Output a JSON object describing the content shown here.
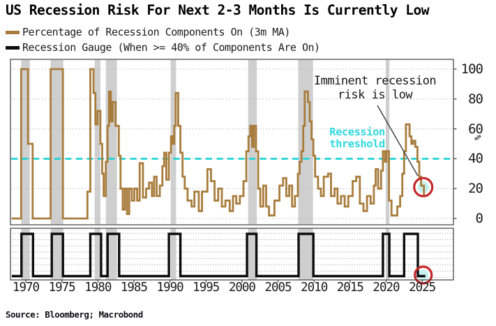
{
  "header": {
    "title": "US Recession Risk For Next 2-3 Months Is Currently Low"
  },
  "legend": {
    "items": [
      {
        "label": "Percentage of Recession Components On (3m MA)",
        "color": "#a87c3c"
      },
      {
        "label": "Recession Gauge (When >= 40% of Components Are On)",
        "color": "#0d0d0d"
      }
    ]
  },
  "annotations": {
    "imminent": {
      "line1": "Imminent recession",
      "line2": "risk is low"
    },
    "threshold_label": {
      "line1": "Recession",
      "line2": "threshold"
    }
  },
  "source": "Source: Bloomberg; Macrobond",
  "y_unit": "%",
  "colors": {
    "components_line": "#a87c3c",
    "gauge_line": "#0d0d0d",
    "threshold": "#17d3d3",
    "threshold_text": "#2fd9e0",
    "recession_bar": "#c8c8c8",
    "highlight_circle": "#c3272b",
    "highlight_inner": "#bdeeee",
    "grid": "#bdbdbd",
    "frame": "#3c3c3c",
    "arrow": "#3a3a3a"
  },
  "chart_data": {
    "type": "line",
    "title": "US Recession Risk For Next 2-3 Months Is Currently Low",
    "grid": "dotted horizontal",
    "legend_position": "top-left",
    "x_ticks": [
      1970,
      1975,
      1980,
      1985,
      1990,
      1995,
      2000,
      2005,
      2010,
      2015,
      2020,
      2025
    ],
    "x_range": [
      1968.05,
      2029.3
    ],
    "main_panel": {
      "series_name": "Percentage of Recession Components On (3m MA)",
      "ylabel": "%",
      "y_ticks": [
        100,
        80,
        60,
        40,
        20,
        0
      ],
      "y_range": [
        0,
        100
      ],
      "threshold": 40,
      "end_year": 2025.45,
      "current_value": 20,
      "step_points": [
        [
          1968.05,
          0
        ],
        [
          1969.35,
          100
        ],
        [
          1970.3,
          50
        ],
        [
          1970.95,
          0
        ],
        [
          1973.45,
          100
        ],
        [
          1975.15,
          0
        ],
        [
          1978.55,
          18
        ],
        [
          1978.95,
          100
        ],
        [
          1979.4,
          84
        ],
        [
          1979.65,
          63
        ],
        [
          1979.95,
          72
        ],
        [
          1980.35,
          50
        ],
        [
          1980.6,
          30
        ],
        [
          1980.8,
          15
        ],
        [
          1981.1,
          38
        ],
        [
          1981.35,
          62
        ],
        [
          1981.55,
          85
        ],
        [
          1981.8,
          65
        ],
        [
          1982.05,
          78
        ],
        [
          1982.45,
          62
        ],
        [
          1982.9,
          42
        ],
        [
          1983.15,
          20
        ],
        [
          1983.45,
          6
        ],
        [
          1983.75,
          20
        ],
        [
          1984.05,
          3
        ],
        [
          1984.35,
          20
        ],
        [
          1984.7,
          12
        ],
        [
          1985.05,
          20
        ],
        [
          1985.45,
          12
        ],
        [
          1985.8,
          37
        ],
        [
          1986.25,
          14
        ],
        [
          1986.7,
          20
        ],
        [
          1987.1,
          24
        ],
        [
          1987.5,
          15
        ],
        [
          1987.8,
          28
        ],
        [
          1988.15,
          15
        ],
        [
          1988.6,
          22
        ],
        [
          1988.95,
          35
        ],
        [
          1989.2,
          44
        ],
        [
          1989.5,
          26
        ],
        [
          1989.85,
          44
        ],
        [
          1990.15,
          55
        ],
        [
          1990.4,
          50
        ],
        [
          1990.6,
          62
        ],
        [
          1990.8,
          84
        ],
        [
          1991.15,
          62
        ],
        [
          1991.45,
          44
        ],
        [
          1991.75,
          28
        ],
        [
          1992.05,
          20
        ],
        [
          1992.45,
          12
        ],
        [
          1993.0,
          8
        ],
        [
          1993.4,
          18
        ],
        [
          1994.0,
          5
        ],
        [
          1994.45,
          18
        ],
        [
          1995.2,
          33
        ],
        [
          1995.7,
          25
        ],
        [
          1996.2,
          12
        ],
        [
          1996.7,
          20
        ],
        [
          1997.2,
          8
        ],
        [
          1997.7,
          12
        ],
        [
          1998.3,
          5
        ],
        [
          1998.75,
          15
        ],
        [
          1999.2,
          10
        ],
        [
          1999.7,
          15
        ],
        [
          2000.2,
          25
        ],
        [
          2000.6,
          45
        ],
        [
          2000.9,
          55
        ],
        [
          2001.15,
          62
        ],
        [
          2001.4,
          48
        ],
        [
          2001.65,
          62
        ],
        [
          2001.95,
          45
        ],
        [
          2002.25,
          20
        ],
        [
          2002.55,
          8
        ],
        [
          2002.95,
          22
        ],
        [
          2003.35,
          8
        ],
        [
          2003.75,
          2
        ],
        [
          2004.5,
          12
        ],
        [
          2005.2,
          22
        ],
        [
          2005.7,
          27
        ],
        [
          2006.15,
          15
        ],
        [
          2006.55,
          22
        ],
        [
          2006.95,
          8
        ],
        [
          2007.35,
          15
        ],
        [
          2007.75,
          30
        ],
        [
          2008.0,
          38
        ],
        [
          2008.25,
          45
        ],
        [
          2008.5,
          62
        ],
        [
          2008.7,
          85
        ],
        [
          2009.15,
          78
        ],
        [
          2009.4,
          65
        ],
        [
          2009.65,
          53
        ],
        [
          2009.9,
          42
        ],
        [
          2010.15,
          28
        ],
        [
          2010.55,
          20
        ],
        [
          2010.95,
          15
        ],
        [
          2011.35,
          28
        ],
        [
          2011.95,
          30
        ],
        [
          2012.35,
          15
        ],
        [
          2012.85,
          20
        ],
        [
          2013.25,
          10
        ],
        [
          2013.75,
          15
        ],
        [
          2014.25,
          8
        ],
        [
          2014.75,
          15
        ],
        [
          2015.35,
          25
        ],
        [
          2015.85,
          28
        ],
        [
          2016.35,
          10
        ],
        [
          2016.85,
          5
        ],
        [
          2017.35,
          15
        ],
        [
          2017.85,
          10
        ],
        [
          2018.3,
          22
        ],
        [
          2018.55,
          33
        ],
        [
          2018.9,
          20
        ],
        [
          2019.3,
          32
        ],
        [
          2019.55,
          45
        ],
        [
          2019.85,
          38
        ],
        [
          2020.05,
          45
        ],
        [
          2020.4,
          12
        ],
        [
          2020.75,
          2
        ],
        [
          2021.55,
          8
        ],
        [
          2021.95,
          15
        ],
        [
          2022.25,
          30
        ],
        [
          2022.5,
          45
        ],
        [
          2022.75,
          63
        ],
        [
          2023.25,
          55
        ],
        [
          2023.5,
          50
        ],
        [
          2023.75,
          52
        ],
        [
          2024.05,
          48
        ],
        [
          2024.35,
          38
        ],
        [
          2024.6,
          28
        ],
        [
          2024.85,
          22
        ],
        [
          2025.25,
          15
        ]
      ]
    },
    "gauge_panel": {
      "series_name": "Recession Gauge (When >= 40% of Components Are On)",
      "values": "0 = off, 1 = on",
      "start_year": 1968.05,
      "end_year": 2025.45,
      "current_state": 0,
      "on_segments": [
        [
          1969.4,
          1971.0
        ],
        [
          1973.6,
          1975.15
        ],
        [
          1978.95,
          1980.45
        ],
        [
          1981.35,
          1982.95
        ],
        [
          1989.85,
          1991.45
        ],
        [
          2000.7,
          2002.0
        ],
        [
          2007.85,
          2009.9
        ],
        [
          2019.55,
          2020.45
        ],
        [
          2022.5,
          2024.4
        ]
      ]
    },
    "recession_bars": [
      [
        1969.35,
        1970.55
      ],
      [
        1973.45,
        1975.2
      ],
      [
        1979.55,
        1980.35
      ],
      [
        1981.1,
        1982.65
      ],
      [
        1990.1,
        1990.85
      ],
      [
        2000.85,
        2002.05
      ],
      [
        2007.8,
        2009.85
      ],
      [
        2019.95,
        2020.45
      ]
    ]
  }
}
